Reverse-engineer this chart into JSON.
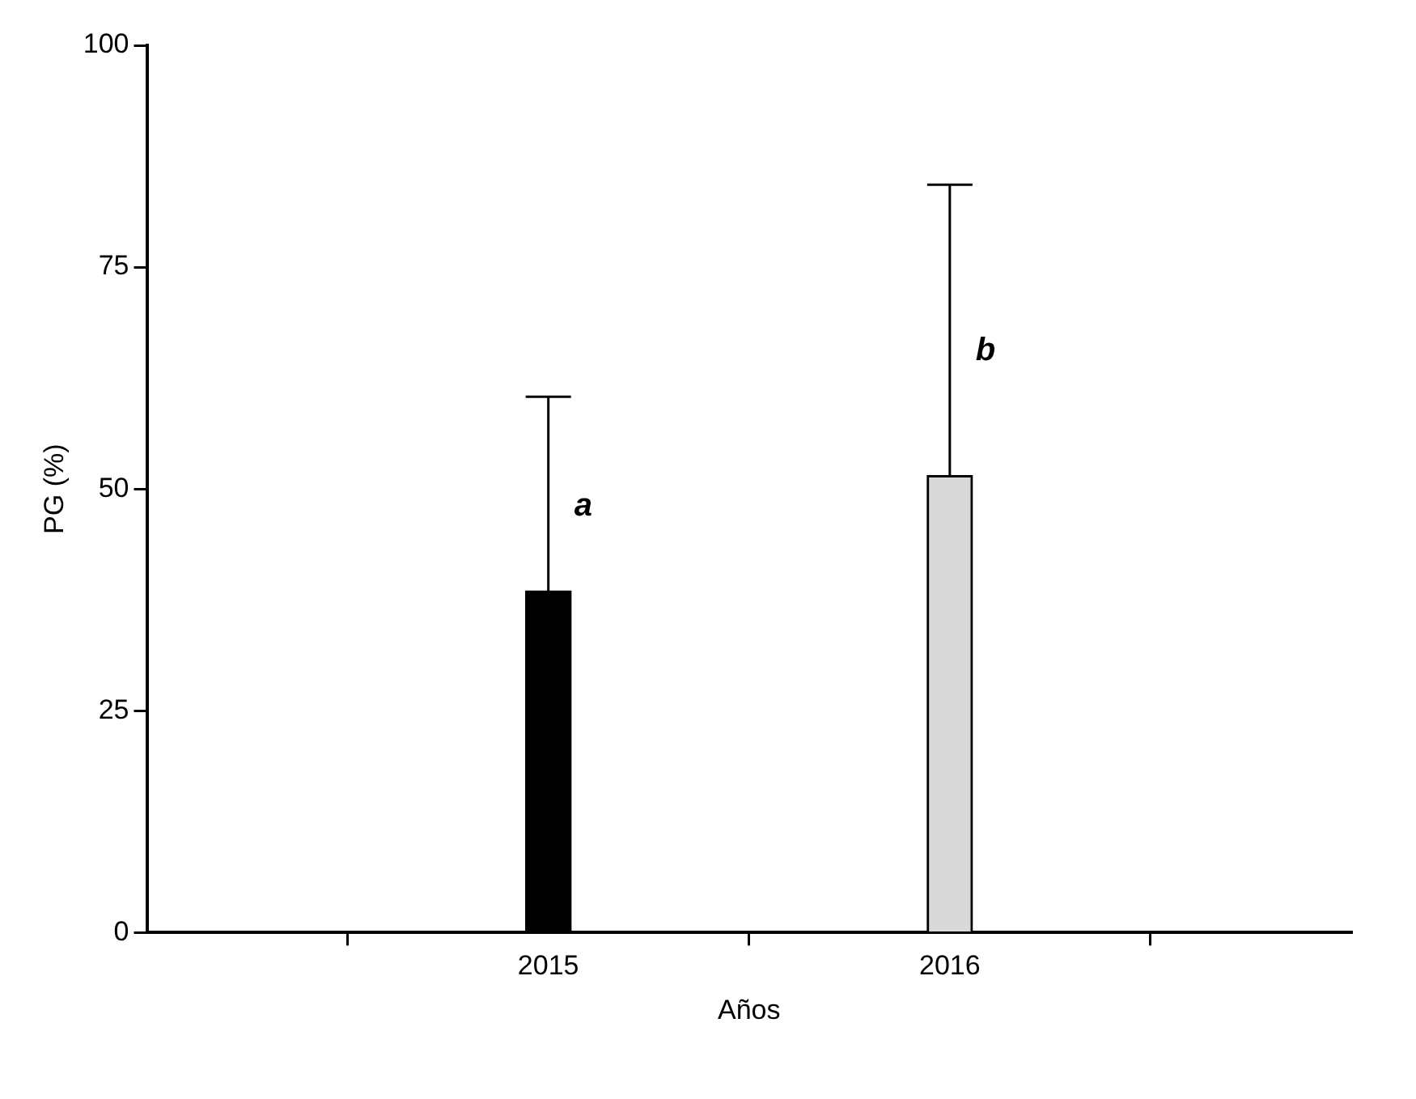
{
  "chart_data": {
    "type": "bar",
    "xlabel": "Años",
    "ylabel": "PG (%)",
    "categories": [
      "2015",
      "2016"
    ],
    "values": [
      38.5,
      51.5
    ],
    "colors": [
      "#000000",
      "#d9d9d9"
    ],
    "errors": [
      [
        38.5,
        60.4
      ],
      [
        51.5,
        84.3
      ]
    ],
    "ylim": [
      0,
      100
    ],
    "yticks": [
      0,
      25,
      50,
      75,
      100
    ],
    "grid": false,
    "legend": false,
    "annotations": [
      {
        "text": "a",
        "x": "2015",
        "y": 48
      },
      {
        "text": "b",
        "x": "2016",
        "y": 65.5
      }
    ]
  }
}
